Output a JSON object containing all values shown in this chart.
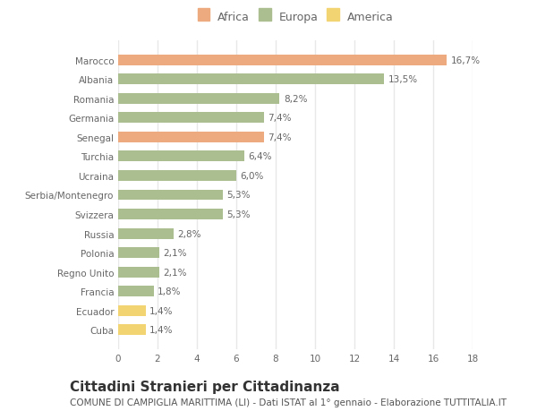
{
  "countries": [
    "Marocco",
    "Albania",
    "Romania",
    "Germania",
    "Senegal",
    "Turchia",
    "Ucraina",
    "Serbia/Montenegro",
    "Svizzera",
    "Russia",
    "Polonia",
    "Regno Unito",
    "Francia",
    "Ecuador",
    "Cuba"
  ],
  "values": [
    16.7,
    13.5,
    8.2,
    7.4,
    7.4,
    6.4,
    6.0,
    5.3,
    5.3,
    2.8,
    2.1,
    2.1,
    1.8,
    1.4,
    1.4
  ],
  "labels": [
    "16,7%",
    "13,5%",
    "8,2%",
    "7,4%",
    "7,4%",
    "6,4%",
    "6,0%",
    "5,3%",
    "5,3%",
    "2,8%",
    "2,1%",
    "2,1%",
    "1,8%",
    "1,4%",
    "1,4%"
  ],
  "continent": [
    "Africa",
    "Europa",
    "Europa",
    "Europa",
    "Africa",
    "Europa",
    "Europa",
    "Europa",
    "Europa",
    "Europa",
    "Europa",
    "Europa",
    "Europa",
    "America",
    "America"
  ],
  "colors": {
    "Africa": "#EDAA7F",
    "Europa": "#ABBE90",
    "America": "#F2D472"
  },
  "title": "Cittadini Stranieri per Cittadinanza",
  "subtitle": "COMUNE DI CAMPIGLIA MARITTIMA (LI) - Dati ISTAT al 1° gennaio - Elaborazione TUTTITALIA.IT",
  "xlim": [
    0,
    18
  ],
  "xticks": [
    0,
    2,
    4,
    6,
    8,
    10,
    12,
    14,
    16,
    18
  ],
  "background_color": "#FFFFFF",
  "grid_color": "#E8E8E8",
  "bar_height": 0.55,
  "title_fontsize": 11,
  "subtitle_fontsize": 7.5,
  "label_fontsize": 7.5,
  "tick_fontsize": 7.5,
  "legend_fontsize": 9
}
